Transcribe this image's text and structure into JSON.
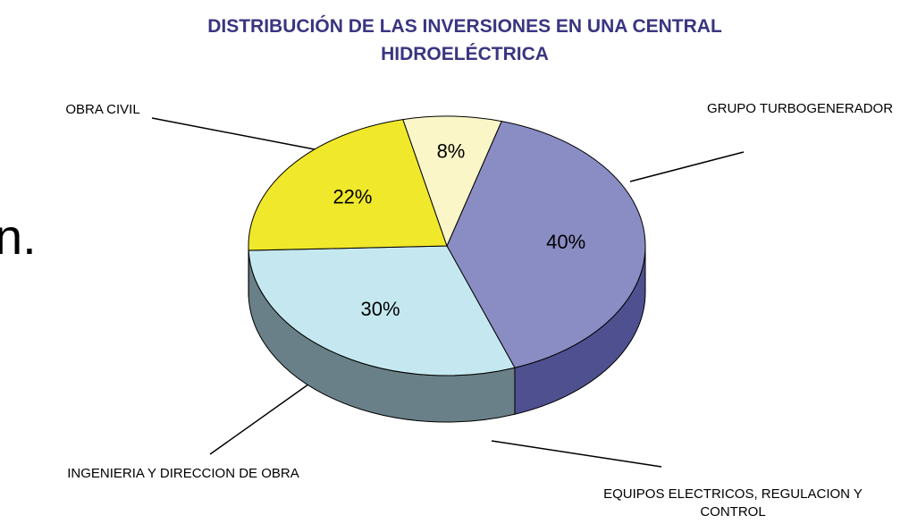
{
  "background_text": "n.",
  "chart_data": {
    "type": "pie3d",
    "title": "DISTRIBUCIÓN DE LAS INVERSIONES EN UNA CENTRAL HIDROELÉCTRICA",
    "categories": [
      "OBRA CIVIL",
      "GRUPO TURBOGENERADOR",
      "EQUIPOS ELECTRICOS, REGULACION Y CONTROL",
      "INGENIERIA Y DIRECCION DE OBRA"
    ],
    "values": [
      40,
      30,
      22,
      8
    ],
    "value_labels": [
      "40%",
      "30%",
      "22%",
      "8%"
    ],
    "colors": [
      "#8a8cc4",
      "#c5e8f0",
      "#f0e82a",
      "#faf6c8"
    ],
    "side_colors": [
      "#4f5090",
      "#6a8088",
      "#7c7c30",
      "#7f8070"
    ]
  }
}
